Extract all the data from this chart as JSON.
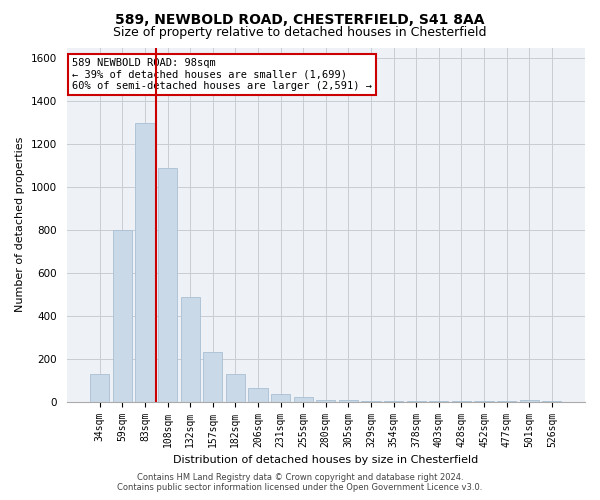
{
  "title1": "589, NEWBOLD ROAD, CHESTERFIELD, S41 8AA",
  "title2": "Size of property relative to detached houses in Chesterfield",
  "xlabel": "Distribution of detached houses by size in Chesterfield",
  "ylabel": "Number of detached properties",
  "categories": [
    "34sqm",
    "59sqm",
    "83sqm",
    "108sqm",
    "132sqm",
    "157sqm",
    "182sqm",
    "206sqm",
    "231sqm",
    "255sqm",
    "280sqm",
    "305sqm",
    "329sqm",
    "354sqm",
    "378sqm",
    "403sqm",
    "428sqm",
    "452sqm",
    "477sqm",
    "501sqm",
    "526sqm"
  ],
  "values": [
    130,
    800,
    1300,
    1090,
    490,
    230,
    130,
    65,
    35,
    20,
    10,
    8,
    5,
    4,
    3,
    2,
    2,
    2,
    2,
    8,
    2
  ],
  "bar_color": "#c9d9e8",
  "bar_edge_color": "#a8c0d4",
  "vline_color": "#cc0000",
  "annotation_text": "589 NEWBOLD ROAD: 98sqm\n← 39% of detached houses are smaller (1,699)\n60% of semi-detached houses are larger (2,591) →",
  "annotation_box_color": "#ffffff",
  "annotation_box_edge": "#cc0000",
  "ylim": [
    0,
    1650
  ],
  "yticks": [
    0,
    200,
    400,
    600,
    800,
    1000,
    1200,
    1400,
    1600
  ],
  "footer1": "Contains HM Land Registry data © Crown copyright and database right 2024.",
  "footer2": "Contains public sector information licensed under the Open Government Licence v3.0.",
  "bg_color": "#ffffff",
  "plot_bg_color": "#eef2f7",
  "grid_color": "#c8cdd4"
}
